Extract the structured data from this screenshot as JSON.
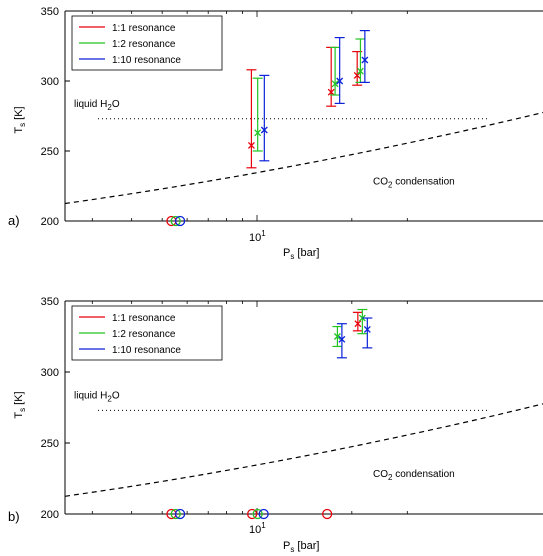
{
  "chart_data": [
    {
      "panel_label": "a)",
      "type": "scatter",
      "x_scale": "log",
      "ylim": [
        200,
        350
      ],
      "y_ticks": [
        "200",
        "250",
        "300",
        "350"
      ],
      "x_tick": {
        "base": "10",
        "exp": "1"
      },
      "ylabel": {
        "main": "T",
        "sub": "s",
        "unit": " [K]"
      },
      "xlabel": {
        "main": "P",
        "sub": "s",
        "unit": " [bar]"
      },
      "legend": {
        "position": "top-left",
        "entries": [
          "1:1 resonance",
          "1:2 resonance",
          "1:10 resonance"
        ]
      },
      "annotations": {
        "liquid": {
          "pre": "liquid H",
          "sub": "2",
          "post": "O",
          "y": 273
        },
        "co2": {
          "pre": "CO",
          "sub": "2",
          "post": " condensation"
        }
      },
      "series": [
        {
          "name": "1:1 resonance",
          "color": "#e8000b",
          "points": [
            {
              "x": 9.6,
              "y": 254,
              "lo": 238,
              "hi": 308
            },
            {
              "x": 17.2,
              "y": 292,
              "lo": 282,
              "hi": 324
            },
            {
              "x": 20.8,
              "y": 304,
              "lo": 297,
              "hi": 321
            }
          ],
          "circles": [
            {
              "x": 5.35,
              "y": 200
            }
          ]
        },
        {
          "name": "1:2 resonance",
          "color": "#22c422",
          "points": [
            {
              "x": 10.05,
              "y": 263,
              "lo": 250,
              "hi": 302
            },
            {
              "x": 17.7,
              "y": 298,
              "lo": 290,
              "hi": 324
            },
            {
              "x": 21.3,
              "y": 307,
              "lo": 299,
              "hi": 330
            }
          ],
          "circles": [
            {
              "x": 5.52,
              "y": 200
            }
          ]
        },
        {
          "name": "1:10 resonance",
          "color": "#0b22d8",
          "points": [
            {
              "x": 10.55,
              "y": 265,
              "lo": 243,
              "hi": 304
            },
            {
              "x": 18.3,
              "y": 300,
              "lo": 284,
              "hi": 331
            },
            {
              "x": 22.0,
              "y": 315,
              "lo": 299,
              "hi": 336
            }
          ],
          "circles": [
            {
              "x": 5.7,
              "y": 200
            }
          ]
        }
      ]
    },
    {
      "panel_label": "b)",
      "type": "scatter",
      "x_scale": "log",
      "ylim": [
        200,
        350
      ],
      "y_ticks": [
        "200",
        "250",
        "300",
        "350"
      ],
      "x_tick": {
        "base": "10",
        "exp": "1"
      },
      "ylabel": {
        "main": "T",
        "sub": "s",
        "unit": " [K]"
      },
      "xlabel": {
        "main": "P",
        "sub": "s",
        "unit": " [bar]"
      },
      "legend": {
        "position": "top-left",
        "entries": [
          "1:1 resonance",
          "1:2 resonance",
          "1:10 resonance"
        ]
      },
      "annotations": {
        "liquid": {
          "pre": "liquid H",
          "sub": "2",
          "post": "O",
          "y": 273
        },
        "co2": {
          "pre": "CO",
          "sub": "2",
          "post": " condensation"
        }
      },
      "series": [
        {
          "name": "1:1 resonance",
          "color": "#e8000b",
          "points": [
            {
              "x": 20.9,
              "y": 334,
              "lo": 329,
              "hi": 342
            }
          ],
          "circles": [
            {
              "x": 5.35,
              "y": 200
            },
            {
              "x": 9.65,
              "y": 200
            },
            {
              "x": 16.7,
              "y": 200
            }
          ]
        },
        {
          "name": "1:2 resonance",
          "color": "#22c422",
          "points": [
            {
              "x": 18.0,
              "y": 325,
              "lo": 318,
              "hi": 332
            },
            {
              "x": 21.6,
              "y": 338,
              "lo": 327,
              "hi": 344
            }
          ],
          "circles": [
            {
              "x": 5.52,
              "y": 200
            },
            {
              "x": 10.05,
              "y": 200
            }
          ]
        },
        {
          "name": "1:10 resonance",
          "color": "#0b22d8",
          "points": [
            {
              "x": 18.6,
              "y": 323,
              "lo": 310,
              "hi": 334
            },
            {
              "x": 22.4,
              "y": 330,
              "lo": 317,
              "hi": 338
            }
          ],
          "circles": [
            {
              "x": 5.7,
              "y": 200
            },
            {
              "x": 10.5,
              "y": 200
            }
          ]
        }
      ]
    }
  ]
}
